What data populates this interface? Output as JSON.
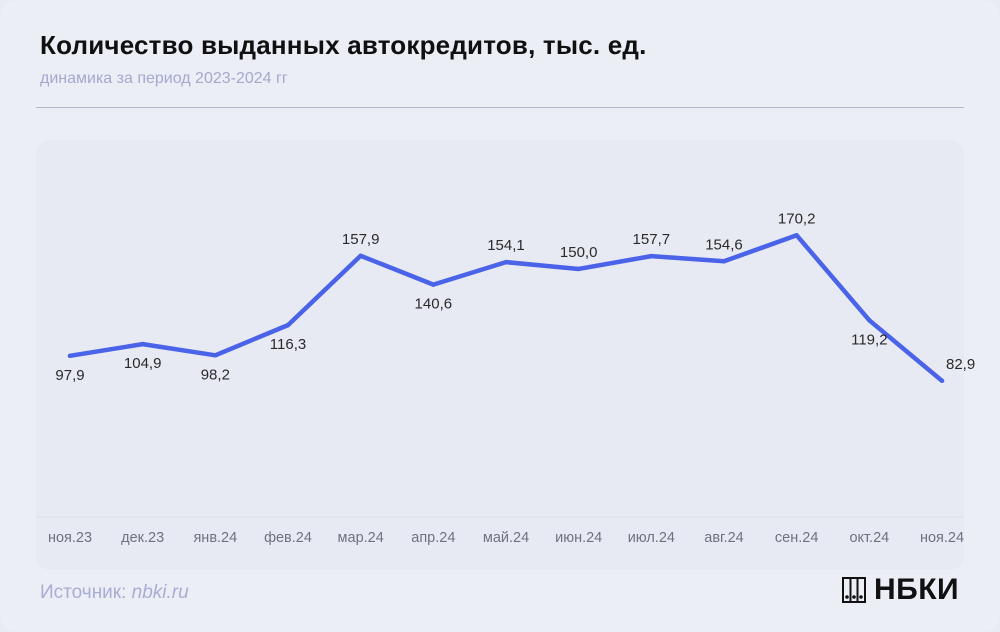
{
  "header": {
    "title": "Количество выданных автокредитов, тыс. ед.",
    "subtitle": "динамика за период 2023-2024 гг"
  },
  "footer": {
    "source_label": "Источник:",
    "source_link": "nbki.ru",
    "logo_text": "НБКИ"
  },
  "colors": {
    "line": "#4a63e8",
    "axis_text": "#6e7280",
    "label_text": "#2a2a2a"
  },
  "chart_data": {
    "type": "line",
    "title": "Количество выданных автокредитов, тыс. ед.",
    "subtitle": "динамика за период 2023-2024 гг",
    "categories": [
      "ноя.23",
      "дек.23",
      "янв.24",
      "фев.24",
      "мар.24",
      "апр.24",
      "май.24",
      "июн.24",
      "июл.24",
      "авг.24",
      "сен.24",
      "окт.24",
      "ноя.24"
    ],
    "series": [
      {
        "values": [
          97.9,
          104.9,
          98.2,
          116.3,
          157.9,
          140.6,
          154.1,
          150.0,
          157.7,
          154.6,
          170.2,
          119.2,
          82.9
        ],
        "labels": [
          "97,9",
          "104,9",
          "98,2",
          "116,3",
          "157,9",
          "140,6",
          "154,1",
          "150,0",
          "157,7",
          "154,6",
          "170,2",
          "119,2",
          "82,9"
        ],
        "label_position": [
          "below",
          "below",
          "below",
          "below",
          "above",
          "below",
          "above",
          "above",
          "above",
          "above",
          "above",
          "below",
          "right"
        ]
      }
    ],
    "grid": false,
    "legend": "none"
  }
}
